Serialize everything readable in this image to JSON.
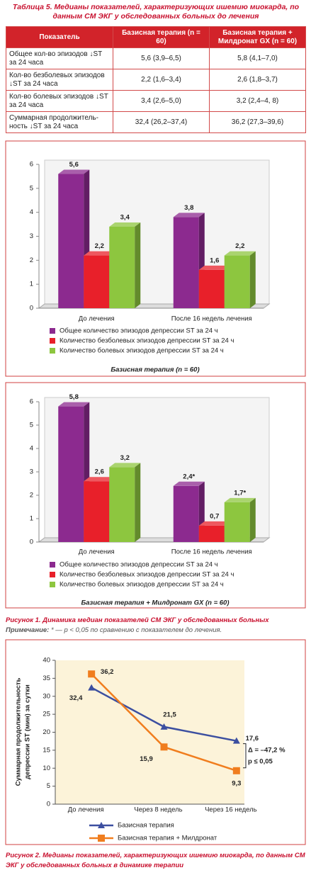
{
  "table_title": "Таблица 5. Медианы показателей, характеризующих ишемию миокарда, по данным СМ ЭКГ у обследованных больных до лечения",
  "table": {
    "header": [
      "Показатель",
      "Базисная терапия (n = 60)",
      "Базисная терапия + Милдронат GX (n = 60)"
    ],
    "rows": [
      [
        "Общее кол-во эпизодов ↓ST за 24 часа",
        "5,6 (3,9–6,5)",
        "5,8 (4,1–7,0)"
      ],
      [
        "Кол-во безболевых эпизодов ↓ST за 24 часа",
        "2,2 (1,6–3,4)",
        "2,6 (1,8–3,7)"
      ],
      [
        "Кол-во болевых эпизодов ↓ST за 24 часа",
        "3,4 (2,6–5,0)",
        "3,2 (2,4–4, 8)"
      ],
      [
        "Суммарная продолжитель­ность ↓ST за 24 часа",
        "32,4 (26,2–37,4)",
        "36,2 (27,3–39,6)"
      ]
    ]
  },
  "chart_data": [
    {
      "type": "bar",
      "caption": "Базисная терапия (n = 60)",
      "categories": [
        "До лечения",
        "После 16 недель лечения"
      ],
      "series": [
        {
          "name": "Общее количество эпизодов депрессии ST за 24 ч",
          "color": "#8c2a8f",
          "values": [
            5.6,
            3.8
          ],
          "value_labels": [
            "5,6",
            "3,8"
          ]
        },
        {
          "name": "Количество безболевых эпизодов депрессии ST за 24 ч",
          "color": "#e8202a",
          "values": [
            2.2,
            1.6
          ],
          "value_labels": [
            "2,2",
            "1,6"
          ]
        },
        {
          "name": "Количество болевых эпизодов депрессии ST за 24 ч",
          "color": "#8dc63f",
          "values": [
            3.4,
            2.2
          ],
          "value_labels": [
            "3,4",
            "2,2"
          ]
        }
      ],
      "ylim": [
        0,
        6
      ],
      "yticks": [
        0,
        1,
        2,
        3,
        4,
        5,
        6
      ]
    },
    {
      "type": "bar",
      "caption": "Базисная терапия + Милдронат GX (n = 60)",
      "categories": [
        "До лечения",
        "После 16 недель лечения"
      ],
      "series": [
        {
          "name": "Общее количество эпизодов депрессии ST за 24 ч",
          "color": "#8c2a8f",
          "values": [
            5.8,
            2.4
          ],
          "value_labels": [
            "5,8",
            "2,4*"
          ]
        },
        {
          "name": "Количество безболевых эпизодов депрессии ST за 24 ч",
          "color": "#e8202a",
          "values": [
            2.6,
            0.7
          ],
          "value_labels": [
            "2,6",
            "0,7"
          ]
        },
        {
          "name": "Количество болевых эпизодов депрессии ST за 24 ч",
          "color": "#8dc63f",
          "values": [
            3.2,
            1.7
          ],
          "value_labels": [
            "3,2",
            "1,7*"
          ]
        }
      ],
      "ylim": [
        0,
        6
      ],
      "yticks": [
        0,
        1,
        2,
        3,
        4,
        5,
        6
      ]
    },
    {
      "type": "line",
      "ylabel": [
        "Суммарная продолжительность",
        "депрессии ST (мин) за сутки"
      ],
      "categories": [
        "До лечения",
        "Через 8 недель",
        "Через 16 недель"
      ],
      "series": [
        {
          "name": "Базисная терапия",
          "color": "#3c4fa0",
          "marker": "triangle",
          "values": [
            32.4,
            21.5,
            17.6
          ],
          "value_labels": [
            "32,4",
            "21,5",
            "17,6"
          ]
        },
        {
          "name": "Базисная терапия + Милдронат",
          "color": "#f07d1e",
          "marker": "square",
          "values": [
            36.2,
            15.9,
            9.3
          ],
          "value_labels": [
            "36,2",
            "15,9",
            "9,3"
          ]
        }
      ],
      "annotations": [
        "Δ = –47,2 %",
        "p ≤ 0,05"
      ],
      "ylim": [
        0,
        40
      ],
      "yticks": [
        0,
        5,
        10,
        15,
        20,
        25,
        30,
        35,
        40
      ]
    }
  ],
  "figure1": {
    "label": "Рисунок 1.",
    "text": "Динамика медиан показателей СМ ЭКГ у обследованных больных",
    "note_label": "Примечание:",
    "note": "* — p < 0,05 по сравнению с показателем до лечения."
  },
  "figure2": {
    "label": "Рисунок 2.",
    "text": "Медианы показателей, характеризующих ишемию миокарда, по данным СМ ЭКГ у обследованных больных в динамике терапии"
  }
}
